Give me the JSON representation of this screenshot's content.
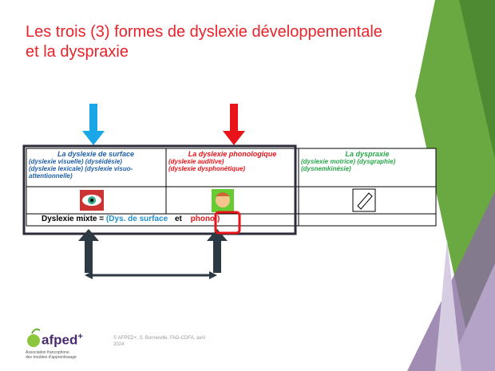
{
  "slide": {
    "title": [
      "Les trois (3) formes de dyslexie développementale",
      "et la dyspraxie"
    ],
    "table": {
      "columns": [
        {
          "heading": "La dyslexie de surface",
          "details": [
            "(dyslexie visuelle) (dyséidésie)",
            "(dyslexie lexicale) (dyslexie visuo-attentionnelle)"
          ]
        },
        {
          "heading": "La dyslexie phonologique",
          "details": [
            "(dyslexie auditive)",
            "(dyslexie dysphonétique)"
          ]
        },
        {
          "heading": "La dyspraxie",
          "details": [
            "(dyslexie motrice) (dysgraphie)",
            "(dysnemkinésie)"
          ]
        }
      ],
      "mixed_row": {
        "label": "Dyslexie mixte = ",
        "surface": "(Dys. de surface",
        "conjunction": "et",
        "phono": "phono.)"
      }
    },
    "footer": {
      "credit": "© AFPED+, S. Bonneville, FAD-CDFA, avril 2024"
    },
    "logo": {
      "name": "afped",
      "plus": "+",
      "tagline": [
        "Association francophone",
        "des troubles d'apprentissage"
      ]
    }
  }
}
